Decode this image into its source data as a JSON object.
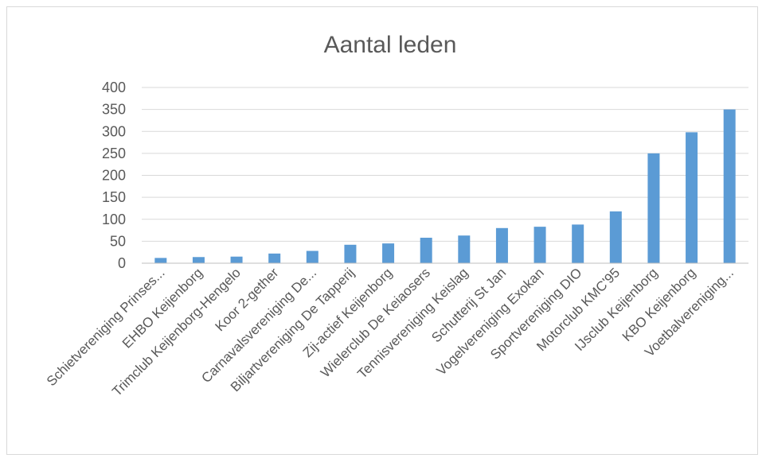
{
  "chart_data": {
    "type": "bar",
    "title": "Aantal leden",
    "xlabel": "",
    "ylabel": "",
    "ylim": [
      0,
      400
    ],
    "yticks": [
      0,
      50,
      100,
      150,
      200,
      250,
      300,
      350,
      400
    ],
    "grid": true,
    "legend": "none",
    "bar_color": "#5b9bd5",
    "categories": [
      "Schietvereniging Prinses...",
      "EHBO Keijenborg",
      "Trimclub Keijenborg-Hengelo",
      "Koor 2-gether",
      "Carnavalsvereniging De...",
      "Biljartvereniging De Tapperij",
      "Zij-actief Keijenborg",
      "Wielerclub De Keiaosers",
      "Tennisvereniging Keislag",
      "Schutterij St Jan",
      "Vogelvereniging Exokan",
      "Sportvereniging DIO",
      "Motorclub KMC'95",
      "IJsclub Keijenborg",
      "KBO Keijenborg",
      "Voetbalvereniging..."
    ],
    "values": [
      12,
      14,
      15,
      22,
      28,
      42,
      45,
      58,
      63,
      80,
      83,
      88,
      118,
      250,
      298,
      350
    ]
  }
}
